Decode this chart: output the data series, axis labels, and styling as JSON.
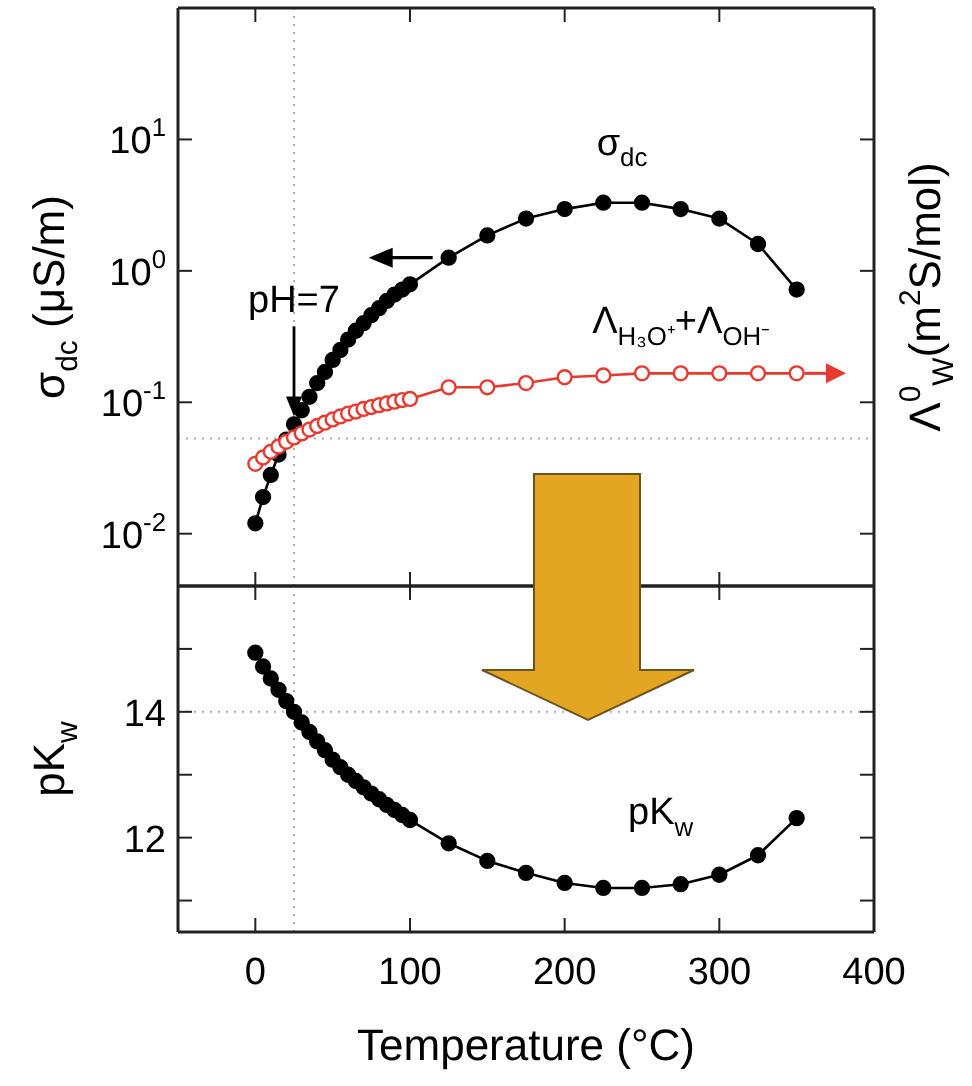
{
  "chart_data": [
    {
      "type": "line",
      "ylabel": "σ$_{dc}$ (μS/m)",
      "y2label": "Λ$^{0}$$_{W}$(m$^{2}$S/mol)",
      "log": "y",
      "xlim": [
        -50,
        400
      ],
      "xticks": [
        {
          "value": 0,
          "label": null
        },
        {
          "value": 100,
          "label": null
        },
        {
          "value": 200,
          "label": null
        },
        {
          "value": 300,
          "label": null
        },
        {
          "value": 400,
          "label": null
        }
      ],
      "ylim": [
        0.004,
        100
      ],
      "yticks": [
        {
          "value": 0.01,
          "label": "10$^{-2}$"
        },
        {
          "value": 0.1,
          "label": "10$^{-1}$"
        },
        {
          "value": 1,
          "label": "10$^{0}$"
        },
        {
          "value": 10,
          "label": "10$^{1}$"
        }
      ],
      "tick_labels": "y",
      "marker": "circle",
      "line_style": "solid",
      "grid": false,
      "x": [
        0,
        5,
        10,
        15,
        20,
        25,
        30,
        35,
        40,
        45,
        50,
        55,
        60,
        65,
        70,
        75,
        80,
        85,
        90,
        95,
        100,
        125,
        150,
        175,
        200,
        225,
        250,
        275,
        300,
        325,
        350
      ],
      "series": [
        {
          "name": "σ$_{dc}$",
          "color": "#000000",
          "values": [
            0.012,
            0.019,
            0.028,
            0.04,
            0.052,
            0.068,
            0.087,
            0.11,
            0.14,
            0.17,
            0.21,
            0.25,
            0.3,
            0.35,
            0.4,
            0.46,
            0.52,
            0.59,
            0.66,
            0.72,
            0.79,
            1.26,
            1.86,
            2.5,
            2.95,
            3.3,
            3.3,
            2.95,
            2.5,
            1.6,
            0.72
          ]
        },
        {
          "name": "Λ$_{H₃O⁺}$+Λ$_{OH⁻}$",
          "color": "#e8392f",
          "values": [
            0.034,
            0.038,
            0.042,
            0.046,
            0.05,
            0.054,
            0.058,
            0.062,
            0.066,
            0.07,
            0.074,
            0.078,
            0.082,
            0.085,
            0.089,
            0.092,
            0.095,
            0.098,
            0.101,
            0.104,
            0.106,
            0.13,
            0.13,
            0.14,
            0.155,
            0.16,
            0.166,
            0.166,
            0.166,
            0.166,
            0.166
          ]
        }
      ],
      "ref_lines": [
        {
          "axis": "x",
          "value": 25,
          "label": null,
          "color": "#b0b0b0",
          "line_style": "dotted"
        },
        {
          "axis": "y",
          "value": 0.053,
          "label": null,
          "color": "#b0b0b0",
          "line_style": "dotted"
        }
      ],
      "annotations": [
        {
          "text": "pH=7",
          "x": 25,
          "y": 0.055
        }
      ]
    },
    {
      "type": "line",
      "xlabel": "Temperature (°C)",
      "ylabel": "pK$_{w}$",
      "xlim": [
        -50,
        400
      ],
      "xticks": [
        0,
        100,
        200,
        300,
        400
      ],
      "ylim": [
        10.5,
        16
      ],
      "yticks": [
        {
          "value": 11,
          "label": null
        },
        12,
        {
          "value": 13,
          "label": null
        },
        14,
        {
          "value": 15,
          "label": null
        }
      ],
      "marker": "circle",
      "line_style": "solid",
      "grid": false,
      "x": [
        0,
        5,
        10,
        15,
        20,
        25,
        30,
        35,
        40,
        45,
        50,
        55,
        60,
        65,
        70,
        75,
        80,
        85,
        90,
        95,
        100,
        125,
        150,
        175,
        200,
        225,
        250,
        275,
        300,
        325,
        350
      ],
      "series": [
        {
          "name": "pK$_{w}$",
          "color": "#000000",
          "values": [
            14.94,
            14.72,
            14.53,
            14.35,
            14.17,
            14.0,
            13.83,
            13.68,
            13.53,
            13.39,
            13.24,
            13.12,
            13.0,
            12.9,
            12.8,
            12.7,
            12.61,
            12.52,
            12.44,
            12.36,
            12.28,
            11.91,
            11.63,
            11.44,
            11.28,
            11.2,
            11.2,
            11.26,
            11.41,
            11.72,
            12.31
          ]
        }
      ],
      "ref_lines": [
        {
          "axis": "x",
          "value": 25,
          "label": null,
          "color": "#b0b0b0",
          "line_style": "dotted"
        },
        {
          "axis": "y",
          "value": 14,
          "label": null,
          "color": "#b0b0b0",
          "line_style": "dotted"
        }
      ]
    }
  ]
}
